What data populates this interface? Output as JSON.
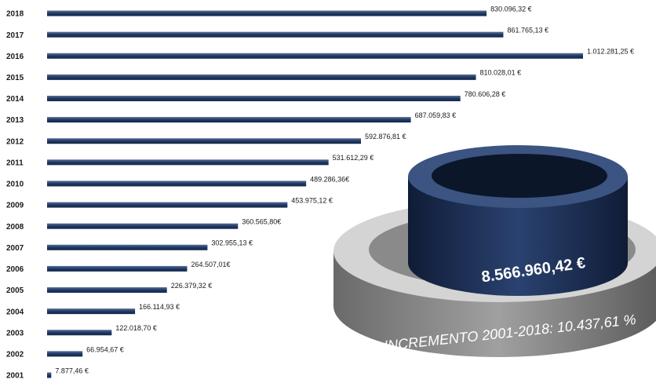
{
  "chart_data": {
    "type": "bar",
    "orientation": "horizontal",
    "color": "#1f3864",
    "categories": [
      "2018",
      "2017",
      "2016",
      "2015",
      "2014",
      "2013",
      "2012",
      "2011",
      "2010",
      "2009",
      "2008",
      "2007",
      "2006",
      "2005",
      "2004",
      "2003",
      "2002",
      "2001"
    ],
    "values": [
      830096.32,
      861765.13,
      1012281.25,
      810028.01,
      780606.28,
      687059.83,
      592876.81,
      531612.29,
      489286.36,
      453975.12,
      360565.8,
      302955.13,
      264507.01,
      226379.32,
      166114.93,
      122018.7,
      66954.67,
      7877.46
    ],
    "value_labels": [
      "830.096,32 €",
      "861.765,13 €",
      "1.012.281,25 €",
      "810.028,01 €",
      "780.606,28 €",
      "687.059,83 €",
      "592.876,81 €",
      "531.612,29 €",
      "489.286,36€",
      "453.975,12 €",
      "360.565,80€",
      "302.955,13 €",
      "264.507,01€",
      "226.379,32 €",
      "166.114,93 €",
      "122.018,70 €",
      "66.954,67 €",
      "7.877,46 €"
    ],
    "annotations": [
      "8.566.960,42 €",
      "INCREMENTO 2001-2018: 10.437,61 %"
    ]
  }
}
